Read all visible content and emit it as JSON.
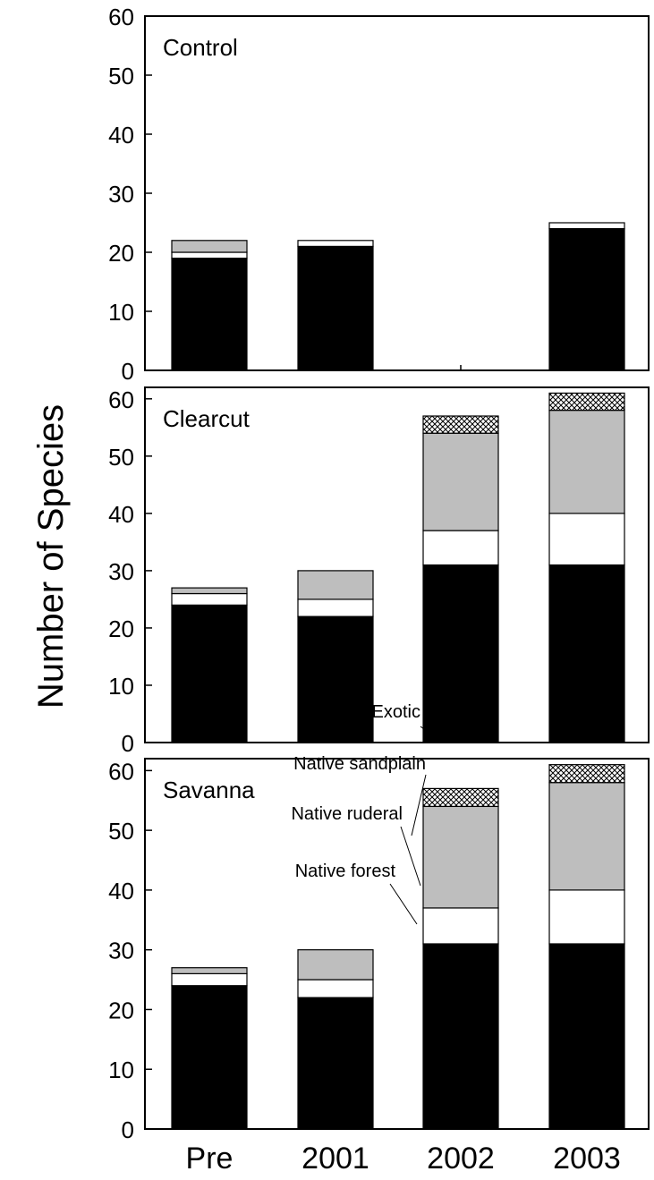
{
  "chart_data": {
    "type": "bar",
    "stacked": true,
    "ylabel": "Number of Species",
    "categories": [
      "Pre",
      "2001",
      "2002",
      "2003"
    ],
    "series_colors": {
      "Native forest": "#000000",
      "Native ruderal": "#ffffff",
      "Native sandplain": "#bebebe",
      "Exotic": "crosshatch"
    },
    "panels": [
      {
        "title": "Control",
        "ylim": [
          0,
          60
        ],
        "yticks": [
          0,
          10,
          20,
          30,
          40,
          50,
          60
        ],
        "series": [
          {
            "name": "Native forest",
            "values": [
              19,
              21,
              null,
              24
            ]
          },
          {
            "name": "Native ruderal",
            "values": [
              1,
              0,
              null,
              0
            ]
          },
          {
            "name": "Native sandplain",
            "values": [
              2,
              0,
              null,
              0
            ]
          },
          {
            "name": "Exotic",
            "values": [
              0,
              0,
              null,
              0
            ]
          }
        ],
        "extra_white_top": [
          0,
          1,
          null,
          1
        ]
      },
      {
        "title": "Clearcut",
        "ylim": [
          0,
          62
        ],
        "yticks": [
          0,
          10,
          20,
          30,
          40,
          50,
          60
        ],
        "series": [
          {
            "name": "Native forest",
            "values": [
              24,
              22,
              31,
              31
            ]
          },
          {
            "name": "Native ruderal",
            "values": [
              2,
              3,
              6,
              9
            ]
          },
          {
            "name": "Native sandplain",
            "values": [
              1,
              5,
              17,
              18
            ]
          },
          {
            "name": "Exotic",
            "values": [
              0,
              0,
              3,
              3
            ]
          }
        ]
      },
      {
        "title": "Savanna",
        "ylim": [
          0,
          62
        ],
        "yticks": [
          0,
          10,
          20,
          30,
          40,
          50,
          60
        ],
        "series": [
          {
            "name": "Native forest",
            "values": [
              24,
              22,
              31,
              31
            ]
          },
          {
            "name": "Native ruderal",
            "values": [
              2,
              3,
              6,
              9
            ]
          },
          {
            "name": "Native sandplain",
            "values": [
              1,
              5,
              17,
              18
            ]
          },
          {
            "name": "Exotic",
            "values": [
              0,
              0,
              3,
              3
            ]
          }
        ],
        "annotations": [
          "Exotic",
          "Native sandplain",
          "Native ruderal",
          "Native forest"
        ]
      }
    ]
  }
}
